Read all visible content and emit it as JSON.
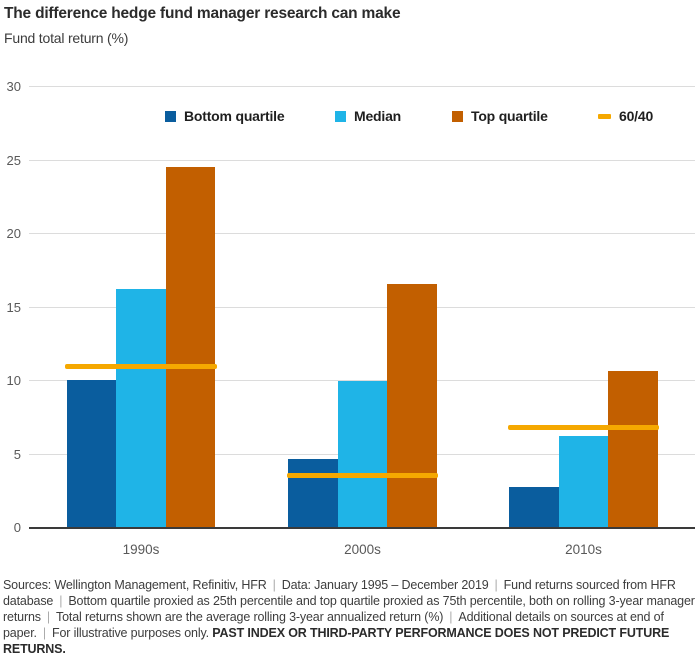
{
  "chart_data": {
    "type": "bar",
    "title": "The difference hedge fund manager research can make",
    "subtitle": "Fund total return (%)",
    "ylabel": "Fund total return (%)",
    "categories": [
      "1990s",
      "2000s",
      "2010s"
    ],
    "series": [
      {
        "name": "Bottom quartile",
        "color": "#0a5d9e",
        "values": [
          10.0,
          4.6,
          2.7
        ]
      },
      {
        "name": "Median",
        "color": "#1fb4e7",
        "values": [
          16.2,
          9.9,
          6.2
        ]
      },
      {
        "name": "Top quartile",
        "color": "#c25f00",
        "values": [
          24.5,
          16.5,
          10.6
        ]
      }
    ],
    "line_series": {
      "name": "60/40",
      "color": "#f5a800",
      "values": [
        10.9,
        3.5,
        6.8
      ],
      "style": "horizontal-segment-per-category"
    },
    "ylim": [
      0,
      30
    ],
    "yticks": [
      0,
      5,
      10,
      15,
      20,
      25,
      30
    ],
    "grid": true,
    "legend_position": "top-inside"
  },
  "colors": {
    "grid": "#dcdcdc",
    "axis": "#3a3a3a",
    "tick_text": "#595959",
    "title_text": "#2b2b2b",
    "footnote_text": "#3d3d3d",
    "separator": "#ababab"
  },
  "footnote": {
    "separator": "|",
    "segments": [
      "Sources: Wellington Management, Refinitiv, HFR",
      "Data: January 1995 – December 2019",
      "Fund returns sourced from HFR database",
      "Bottom quartile proxied as 25th percentile and top quartile proxied as 75th percentile, both on rolling 3-year manager returns",
      "Total returns shown are the average rolling 3-year annualized return (%)",
      "Additional details on sources at end of paper.",
      "For illustrative purposes only."
    ],
    "bold_tail": "PAST INDEX OR THIRD-PARTY PERFORMANCE DOES NOT PREDICT FUTURE RETURNS."
  }
}
